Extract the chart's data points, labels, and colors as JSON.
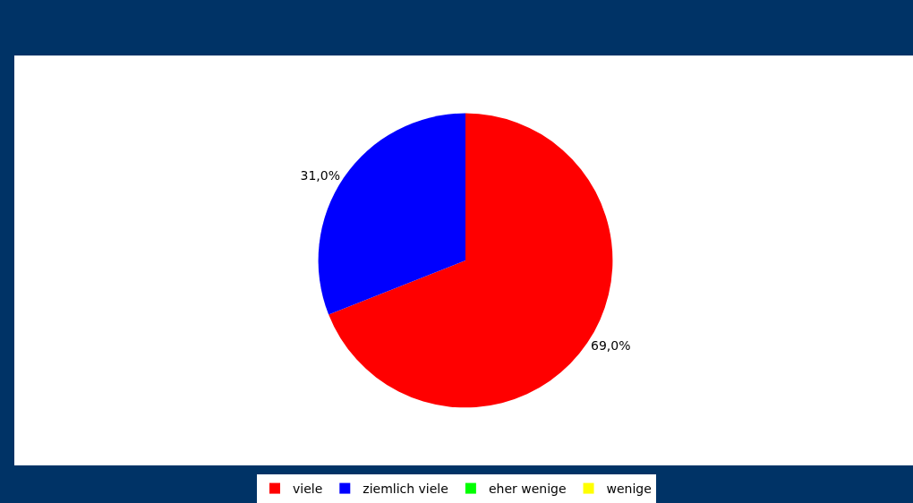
{
  "chart_data": {
    "type": "pie",
    "categories": [
      "viele",
      "ziemlich viele",
      "eher wenige",
      "wenige"
    ],
    "values": [
      69.0,
      31.0,
      0,
      0
    ],
    "colors": [
      "#ff0000",
      "#0000ff",
      "#00ff00",
      "#ffff00"
    ],
    "value_labels": [
      "69,0%",
      "31,0%",
      null,
      null
    ],
    "legend": "bottom"
  }
}
